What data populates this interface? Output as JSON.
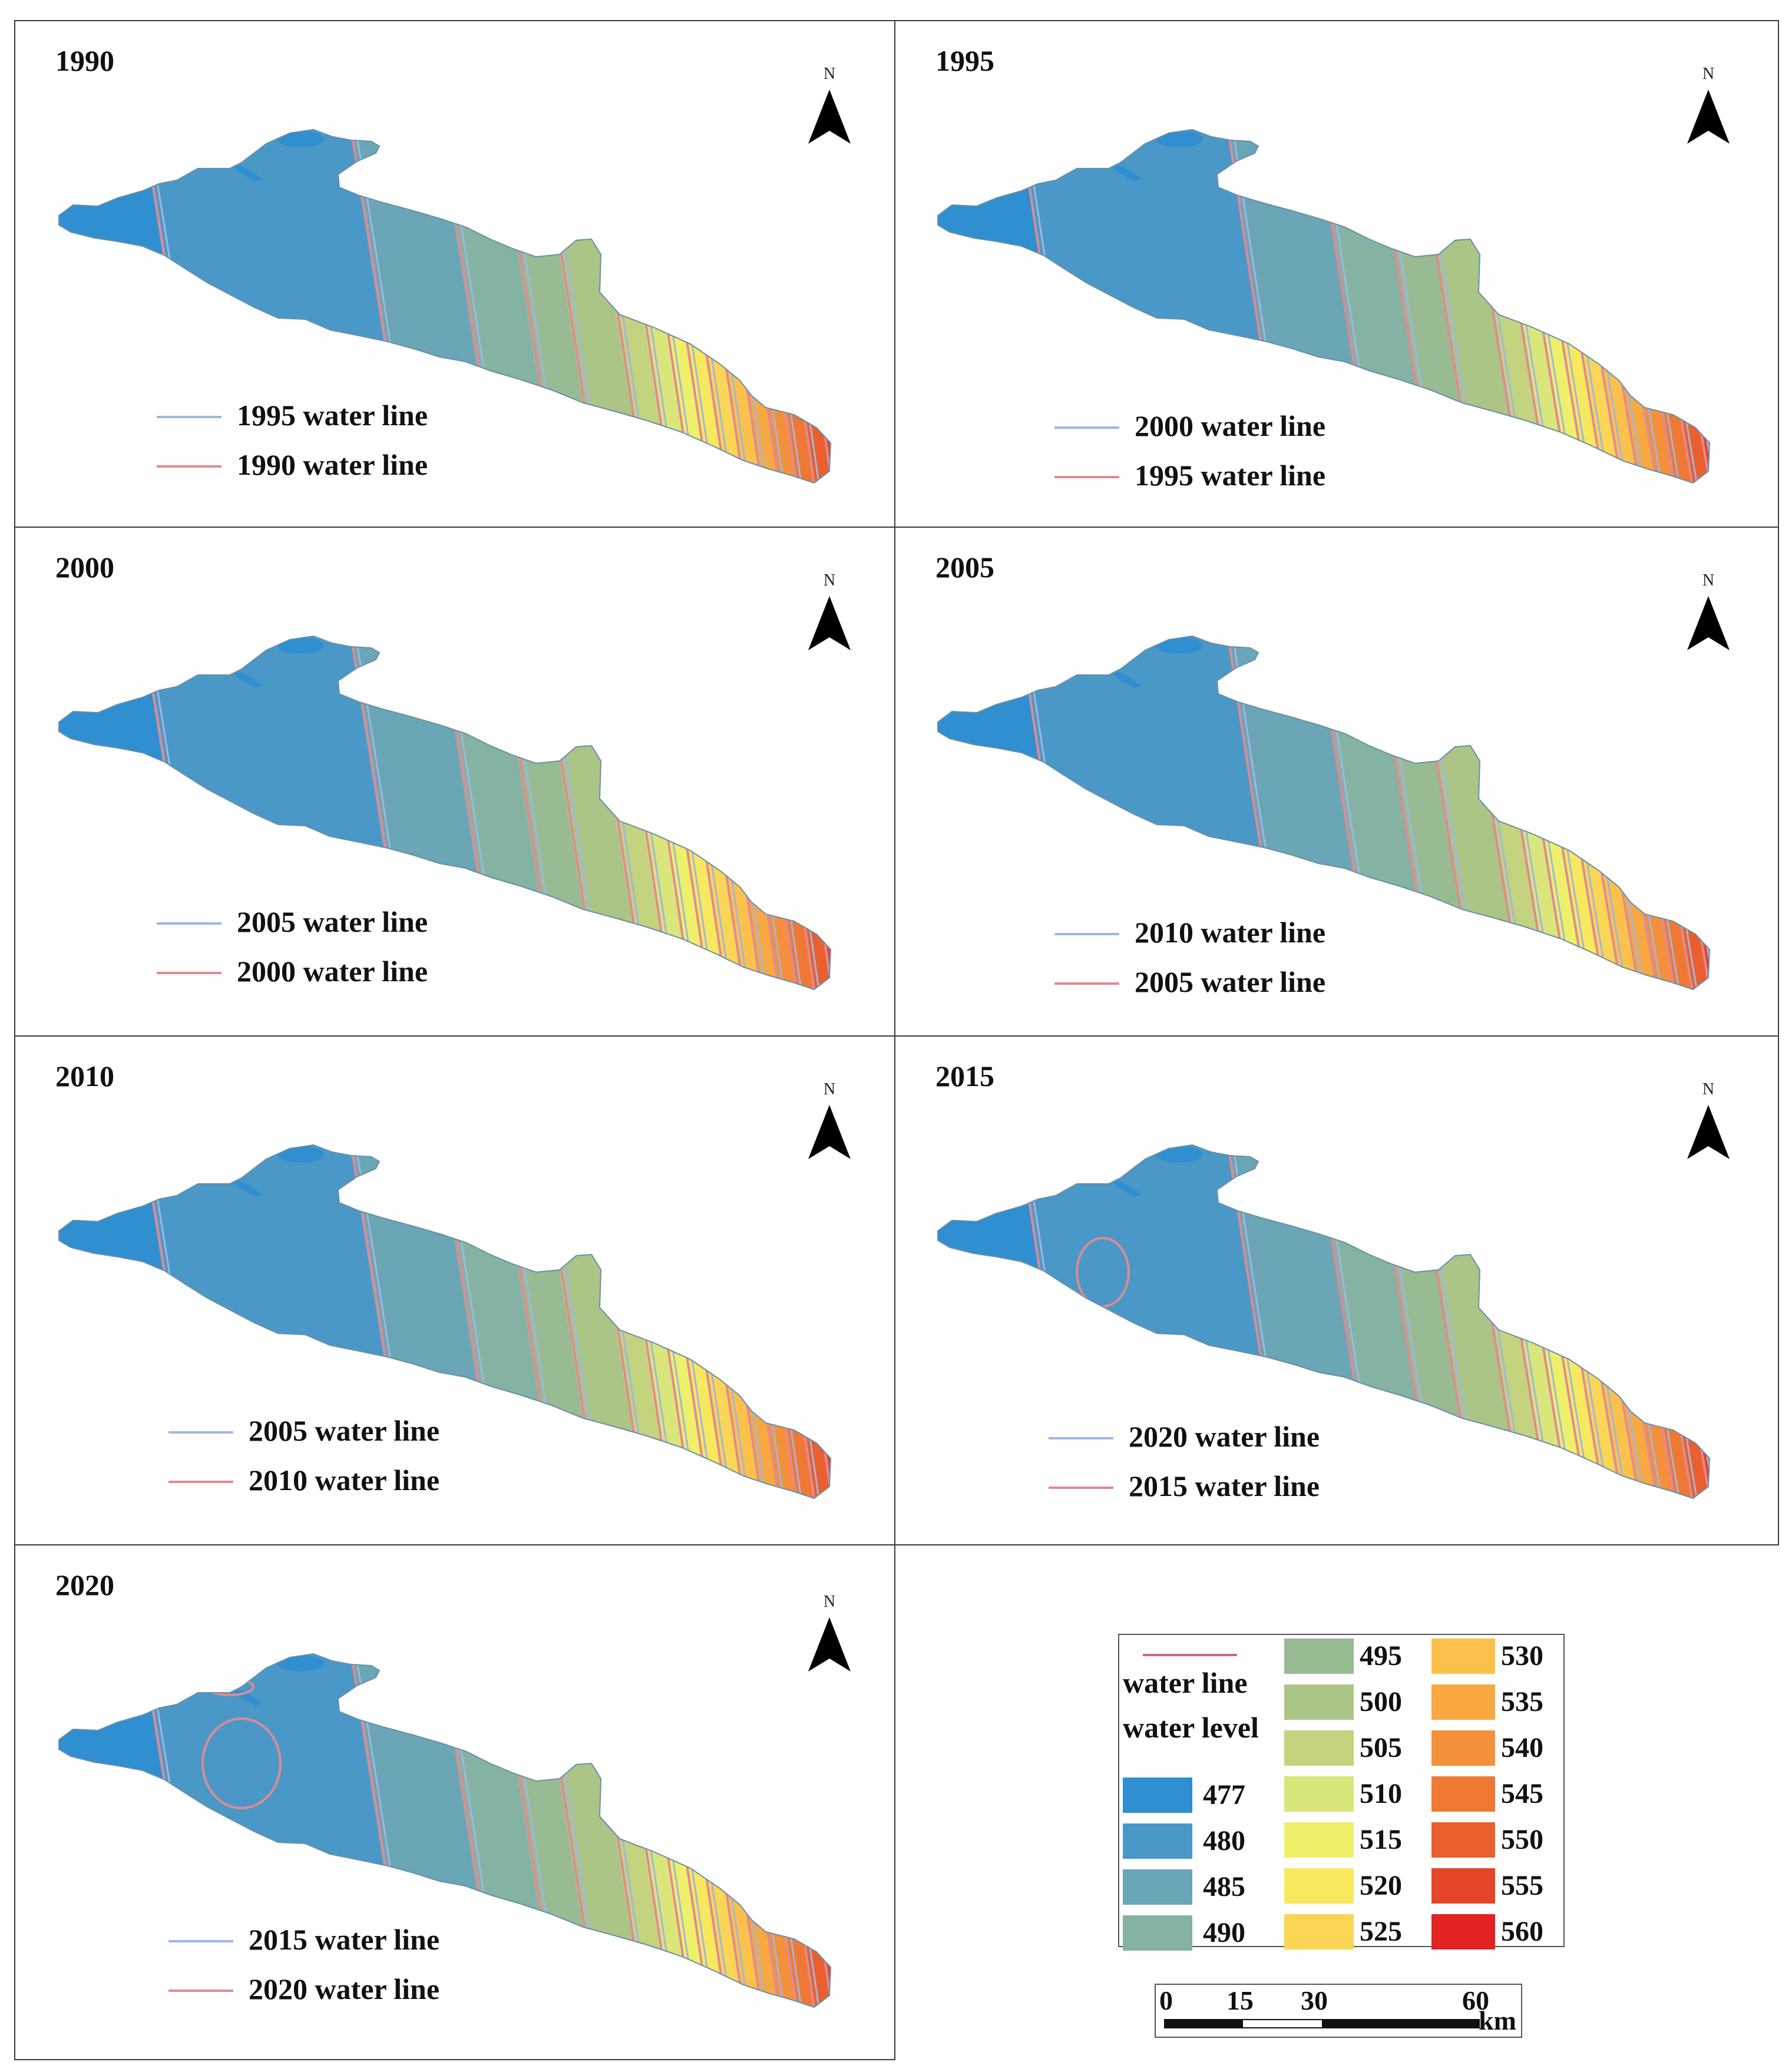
{
  "panels": [
    {
      "year": "1990",
      "legend": [
        {
          "label": "1995 water line",
          "color": "#9fb7e0"
        },
        {
          "label": "1990 water line",
          "color": "#e08a93"
        }
      ]
    },
    {
      "year": "1995",
      "legend": [
        {
          "label": "2000 water line",
          "color": "#9fb7e0"
        },
        {
          "label": "1995 water line",
          "color": "#e08a93"
        }
      ]
    },
    {
      "year": "2000",
      "legend": [
        {
          "label": "2005 water line",
          "color": "#9fb7e0"
        },
        {
          "label": "2000 water line",
          "color": "#e08a93"
        }
      ]
    },
    {
      "year": "2005",
      "legend": [
        {
          "label": "2010 water line",
          "color": "#9fb7e0"
        },
        {
          "label": "2005 water line",
          "color": "#e08a93"
        }
      ]
    },
    {
      "year": "2010",
      "legend": [
        {
          "label": "2005 water line",
          "color": "#9fb7e0"
        },
        {
          "label": "2010 water line",
          "color": "#e08a93"
        }
      ]
    },
    {
      "year": "2015",
      "legend": [
        {
          "label": "2020 water line",
          "color": "#9fb7e0"
        },
        {
          "label": "2015 water line",
          "color": "#e08a93"
        }
      ]
    },
    {
      "year": "2020",
      "legend": [
        {
          "label": "2015 water line",
          "color": "#9fb7e0"
        },
        {
          "label": "2020 water line",
          "color": "#e08a93"
        }
      ]
    }
  ],
  "north_label": "N",
  "legend": {
    "water_line_label": "water line",
    "water_line_color": "#c96a7a",
    "water_level_label": "water level",
    "classes": [
      {
        "value": "477",
        "color": "#2f8fd0"
      },
      {
        "value": "480",
        "color": "#4a98c8"
      },
      {
        "value": "485",
        "color": "#6aa6b6"
      },
      {
        "value": "490",
        "color": "#84b3a3"
      },
      {
        "value": "495",
        "color": "#98bb93"
      },
      {
        "value": "500",
        "color": "#abc586"
      },
      {
        "value": "505",
        "color": "#c3d37e"
      },
      {
        "value": "510",
        "color": "#dae57a"
      },
      {
        "value": "515",
        "color": "#eef06a"
      },
      {
        "value": "520",
        "color": "#f8e85e"
      },
      {
        "value": "525",
        "color": "#fbd554"
      },
      {
        "value": "530",
        "color": "#fbc14a"
      },
      {
        "value": "535",
        "color": "#f8a841"
      },
      {
        "value": "540",
        "color": "#f4903a"
      },
      {
        "value": "545",
        "color": "#ef7833"
      },
      {
        "value": "550",
        "color": "#ea5f2d"
      },
      {
        "value": "555",
        "color": "#e64528"
      },
      {
        "value": "560",
        "color": "#e32222"
      }
    ]
  },
  "scale_bar": {
    "ticks": [
      "0",
      "15",
      "30",
      "60"
    ],
    "unit": "km"
  }
}
